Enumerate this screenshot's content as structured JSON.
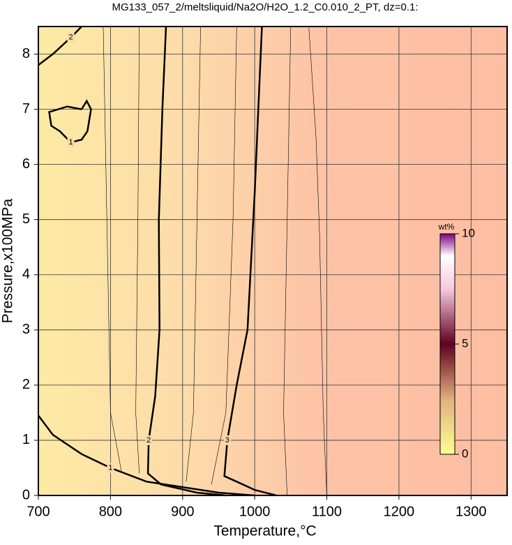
{
  "chart_data": {
    "type": "contour",
    "title": "MG133_057_2/meltsliquid/Na2O/H2O_1.2_C0.010_2_PT, dz=0.1:",
    "xlabel": "Temperature,°C",
    "ylabel": "Pressure,x100MPa",
    "xlim": [
      700,
      1350
    ],
    "ylim": [
      0,
      8.5
    ],
    "xticks": [
      700,
      800,
      900,
      1000,
      1100,
      1200,
      1300
    ],
    "yticks": [
      0,
      1,
      2,
      3,
      4,
      5,
      6,
      7,
      8
    ],
    "grid": true,
    "contours": [
      {
        "level": 1,
        "bold": true,
        "x": [
          700,
          720,
          760,
          800,
          850,
          950,
          1000
        ],
        "y": [
          1.45,
          1.1,
          0.75,
          0.5,
          0.25,
          0.05,
          0
        ]
      },
      {
        "level": 1,
        "bold": true,
        "x": [
          760,
          740,
          715,
          718,
          730,
          745,
          760,
          768,
          773,
          767,
          760
        ],
        "y": [
          7.0,
          7.05,
          6.95,
          6.7,
          6.6,
          6.4,
          6.45,
          6.6,
          7.0,
          7.15,
          7.0
        ]
      },
      {
        "level": 2,
        "bold": true,
        "x": [
          700,
          720,
          745,
          760
        ],
        "y": [
          7.8,
          8.0,
          8.3,
          8.5
        ]
      },
      {
        "level": 2,
        "bold": true,
        "x": [
          877,
          872,
          867,
          868,
          862,
          853,
          852,
          870,
          920,
          960
        ],
        "y": [
          8.5,
          7,
          5,
          3,
          1.8,
          1.0,
          0.4,
          0.2,
          0.05,
          0
        ]
      },
      {
        "level": 3,
        "bold": true,
        "x": [
          1010,
          1005,
          1000,
          990,
          975,
          962,
          958,
          975,
          1000,
          1030
        ],
        "y": [
          8.5,
          7,
          5.5,
          3,
          2,
          1.0,
          0.35,
          0.25,
          0.1,
          0
        ]
      },
      {
        "level": 1.4,
        "bold": false,
        "x": [
          790,
          795,
          800,
          815
        ],
        "y": [
          8.5,
          5,
          1.5,
          0.45
        ]
      },
      {
        "level": 1.8,
        "bold": false,
        "x": [
          840,
          838,
          835,
          840
        ],
        "y": [
          8.5,
          5,
          1.5,
          0.4
        ]
      },
      {
        "level": 2.4,
        "bold": false,
        "x": [
          925,
          920,
          915,
          905
        ],
        "y": [
          8.5,
          5,
          1.5,
          0.25
        ]
      },
      {
        "level": 2.8,
        "bold": false,
        "x": [
          975,
          970,
          960,
          940
        ],
        "y": [
          8.5,
          5,
          1.5,
          0.2
        ]
      },
      {
        "level": 3.2,
        "bold": false,
        "x": [
          1050,
          1045,
          1040,
          1045
        ],
        "y": [
          8.5,
          5,
          1.5,
          0
        ]
      },
      {
        "level": 3.4,
        "bold": false,
        "x": [
          1075,
          1085,
          1090,
          1095,
          1100
        ],
        "y": [
          8.5,
          6.5,
          4.7,
          1.5,
          0
        ]
      }
    ],
    "colorbar": {
      "label": "wt%",
      "lim": [
        0,
        10
      ],
      "ticks": [
        0,
        5,
        10
      ]
    }
  }
}
